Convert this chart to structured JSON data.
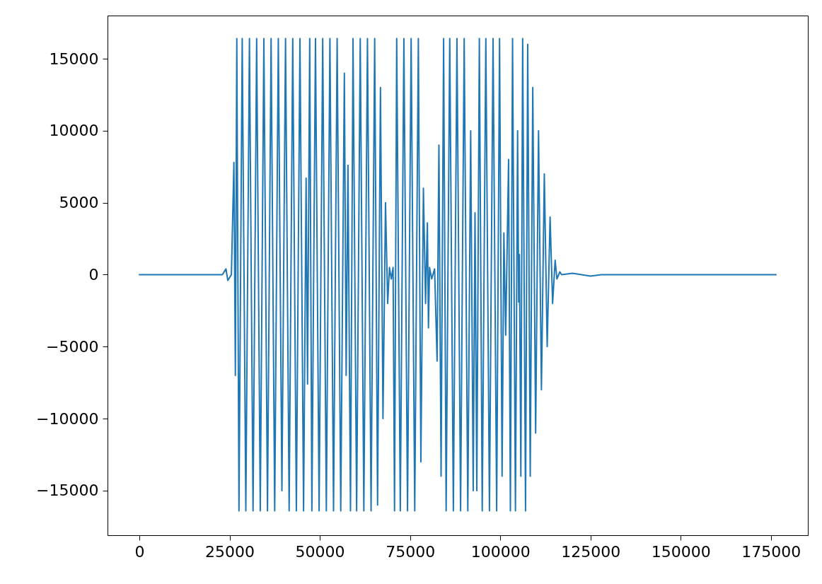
{
  "chart_data": {
    "type": "line",
    "grid": false,
    "xlim": [
      -8820,
      185220
    ],
    "ylim": [
      -18100,
      18000
    ],
    "xticks": [
      0,
      25000,
      50000,
      75000,
      100000,
      125000,
      150000,
      175000
    ],
    "yticks": [
      {
        "value": -15000,
        "label": "−15000"
      },
      {
        "value": -10000,
        "label": "−10000"
      },
      {
        "value": -5000,
        "label": "−5000"
      },
      0,
      5000,
      10000,
      15000
    ],
    "x": [
      0,
      23000,
      24000,
      24500,
      25500,
      26200,
      26600,
      27000,
      27600,
      28500,
      29500,
      30500,
      31500,
      32500,
      33500,
      34500,
      35500,
      36500,
      37500,
      38500,
      39500,
      40500,
      41500,
      42500,
      43500,
      44500,
      45500,
      46200,
      46600,
      47200,
      47800,
      48800,
      49800,
      50800,
      51800,
      52800,
      53800,
      54800,
      55800,
      56800,
      57300,
      57800,
      58500,
      59200,
      60200,
      61200,
      62200,
      63200,
      64200,
      65200,
      66000,
      66800,
      67500,
      68200,
      68800,
      69300,
      69800,
      70300,
      70700,
      71300,
      72300,
      73300,
      74300,
      75300,
      76300,
      77300,
      78000,
      78700,
      79300,
      79800,
      80100,
      80400,
      81000,
      81800,
      82500,
      83000,
      83600,
      84300,
      85000,
      86000,
      87000,
      88000,
      89000,
      90000,
      91000,
      91800,
      92500,
      93000,
      93500,
      94200,
      95000,
      96000,
      97000,
      98000,
      99000,
      99800,
      100500,
      101000,
      101500,
      102300,
      102800,
      103400,
      104200,
      104800,
      105100,
      105300,
      105700,
      106200,
      107000,
      107600,
      108300,
      109000,
      109800,
      110600,
      111400,
      112200,
      113000,
      113800,
      114500,
      115200,
      115700,
      116500,
      117000,
      120000,
      125000,
      128000,
      176400
    ],
    "series": [
      {
        "color": "#1f77b4",
        "values": [
          0,
          0,
          400,
          -400,
          0,
          7800,
          -7000,
          16400,
          -16400,
          16400,
          -16400,
          16400,
          -16400,
          16400,
          -16400,
          16400,
          -16400,
          16400,
          -16400,
          16400,
          -15000,
          16400,
          -16400,
          16400,
          -16400,
          16400,
          -16400,
          6700,
          -7600,
          16400,
          -16400,
          16400,
          -16400,
          16400,
          -16400,
          16400,
          -16400,
          16400,
          -16400,
          14000,
          -7000,
          7600,
          -16400,
          16400,
          -16400,
          16400,
          -16400,
          16400,
          -16400,
          16400,
          -16000,
          13000,
          -10000,
          5000,
          -2000,
          500,
          -300,
          500,
          -16400,
          16400,
          -16400,
          16400,
          -16400,
          16400,
          -16400,
          16400,
          -13000,
          6000,
          -2000,
          3600,
          -3700,
          500,
          -300,
          400,
          -6000,
          9000,
          -14000,
          16400,
          -16400,
          16400,
          -16400,
          16400,
          -16400,
          16400,
          -16400,
          10000,
          -15000,
          4300,
          -15000,
          16400,
          -16400,
          16400,
          -16400,
          16400,
          -16400,
          16400,
          -14000,
          2900,
          -4200,
          8000,
          -16400,
          16400,
          -16400,
          10000,
          -1900,
          1400,
          -14000,
          16400,
          -16400,
          16000,
          -14000,
          13000,
          -11000,
          10000,
          -8000,
          7000,
          -5000,
          4000,
          -2000,
          1000,
          -300,
          200,
          0,
          100,
          -100,
          0,
          0
        ]
      }
    ]
  }
}
